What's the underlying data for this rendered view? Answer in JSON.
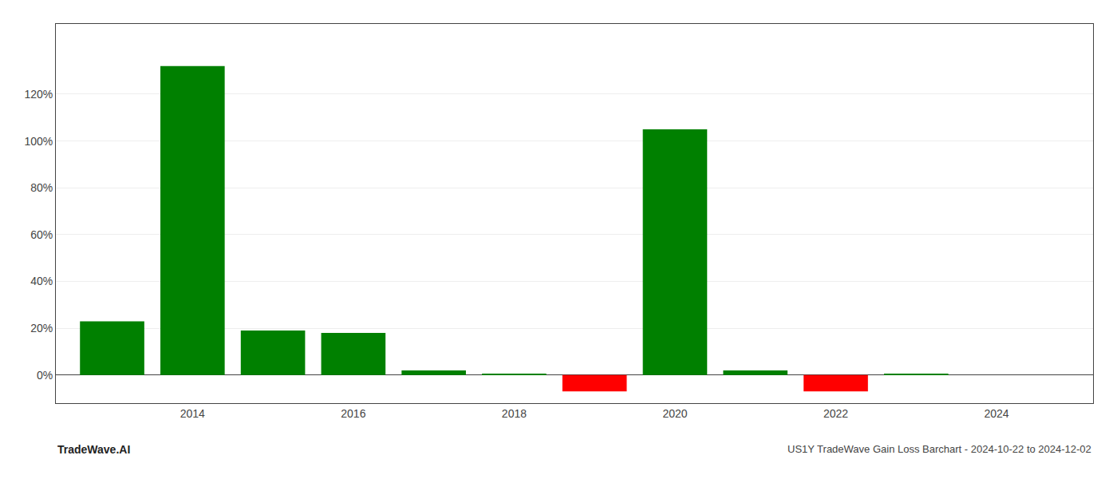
{
  "chart_data": {
    "type": "bar",
    "title": "US1Y TradeWave Gain Loss Barchart - 2024-10-22 to 2024-12-02",
    "annotations": [
      "TradeWave.AI"
    ],
    "x": [
      2013,
      2014,
      2015,
      2016,
      2017,
      2018,
      2019,
      2020,
      2021,
      2022,
      2023,
      2024
    ],
    "values": [
      0.23,
      1.32,
      0.19,
      0.18,
      0.02,
      0.003,
      -0.07,
      1.05,
      0.02,
      -0.07,
      0.003,
      0.0
    ],
    "colors": [
      "#008000",
      "#008000",
      "#008000",
      "#008000",
      "#008000",
      "#008000",
      "#ff0000",
      "#008000",
      "#008000",
      "#ff0000",
      "#008000",
      "#008000"
    ],
    "xlim": [
      2012.3,
      2025.2
    ],
    "xticks": [
      2014,
      2016,
      2018,
      2020,
      2022,
      2024
    ],
    "ylim": [
      -0.12,
      1.5
    ],
    "yticks": [
      {
        "value": 0.0,
        "label": "0%"
      },
      {
        "value": 0.2,
        "label": "20%"
      },
      {
        "value": 0.4,
        "label": "40%"
      },
      {
        "value": 0.6,
        "label": "60%"
      },
      {
        "value": 0.8,
        "label": "80%"
      },
      {
        "value": 1.0,
        "label": "100%"
      },
      {
        "value": 1.2,
        "label": "120%"
      }
    ],
    "grid": true
  }
}
